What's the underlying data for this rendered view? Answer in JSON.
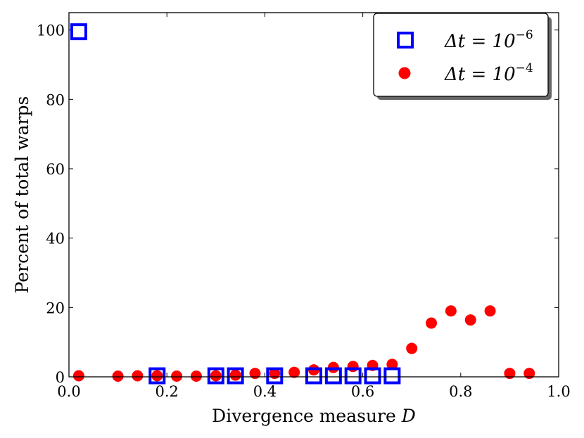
{
  "chart_data": {
    "type": "scatter",
    "title": "",
    "xlabel": "Divergence measure ",
    "xlabel_var": "D",
    "ylabel": "Percent of total warps",
    "xlim": [
      0.0,
      1.0
    ],
    "ylim": [
      0,
      105
    ],
    "xticks": [
      "0.0",
      "0.2",
      "0.4",
      "0.6",
      "0.8",
      "1.0"
    ],
    "xtick_values": [
      0.0,
      0.2,
      0.4,
      0.6,
      0.8,
      1.0
    ],
    "yticks": [
      "0",
      "20",
      "40",
      "60",
      "80",
      "100"
    ],
    "ytick_values": [
      0,
      20,
      40,
      60,
      80,
      100
    ],
    "legend_position": "top-right",
    "series": [
      {
        "name": "Δt = 10^-6",
        "label_base": "Δt = 10",
        "label_exp": "−6",
        "marker": "square-open",
        "color": "#0000ff",
        "x": [
          0.02,
          0.18,
          0.3,
          0.34,
          0.42,
          0.5,
          0.54,
          0.58,
          0.62,
          0.66
        ],
        "y": [
          99.5,
          0.3,
          0.3,
          0.3,
          0.3,
          0.3,
          0.3,
          0.3,
          0.3,
          0.3
        ]
      },
      {
        "name": "Δt = 10^-4",
        "label_base": "Δt = 10",
        "label_exp": "−4",
        "marker": "circle-filled",
        "color": "#ff0000",
        "x": [
          0.02,
          0.1,
          0.14,
          0.18,
          0.22,
          0.26,
          0.3,
          0.34,
          0.38,
          0.42,
          0.46,
          0.5,
          0.54,
          0.58,
          0.62,
          0.66,
          0.7,
          0.74,
          0.78,
          0.82,
          0.86,
          0.9,
          0.94
        ],
        "y": [
          0.3,
          0.2,
          0.3,
          0.3,
          0.2,
          0.2,
          0.3,
          0.5,
          1.0,
          1.0,
          1.3,
          2.0,
          2.7,
          3.0,
          3.3,
          3.6,
          8.2,
          15.5,
          19.0,
          16.4,
          19.0,
          1.0,
          1.0
        ]
      }
    ]
  }
}
